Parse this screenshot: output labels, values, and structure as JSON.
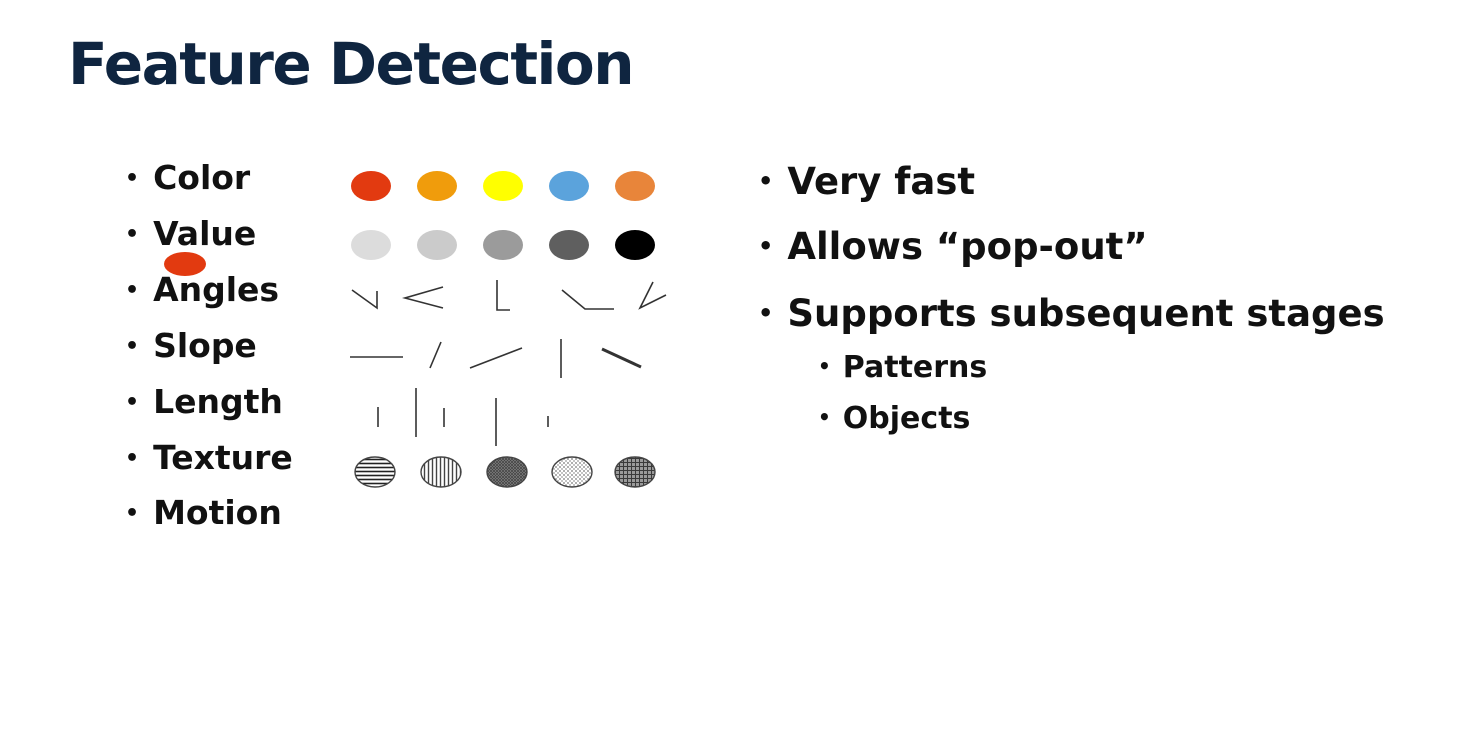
{
  "slide": {
    "title": "Feature Detection",
    "bullet_glyph": "•",
    "features": [
      {
        "label": "Color"
      },
      {
        "label": "Value"
      },
      {
        "label": "Angles"
      },
      {
        "label": "Slope"
      },
      {
        "label": "Length"
      },
      {
        "label": "Texture"
      },
      {
        "label": "Motion"
      }
    ],
    "color_swatches": [
      "#e23a10",
      "#f09c0c",
      "#ffff00",
      "#5ba3dc",
      "#e8853a"
    ],
    "value_swatches": [
      "#dcdcdc",
      "#cbcbcb",
      "#9b9b9b",
      "#5f5f5f",
      "#000000"
    ],
    "texture_swatches": [
      "horizontal-lines",
      "vertical-lines",
      "crosshatch-dense",
      "dots-light",
      "grid"
    ],
    "points": [
      {
        "text": "Very fast",
        "level": 1
      },
      {
        "text": "Allows “pop-out”",
        "level": 1
      },
      {
        "text": "Supports subsequent stages",
        "level": 1
      },
      {
        "text": "Patterns",
        "level": 2
      },
      {
        "text": "Objects",
        "level": 2
      }
    ]
  }
}
